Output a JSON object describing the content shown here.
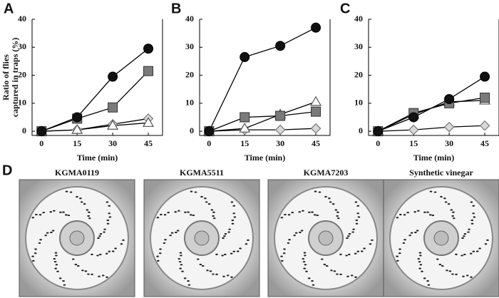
{
  "chart_data": [
    {
      "type": "line",
      "panel": "A",
      "xlabel": "Time (min)",
      "ylabel": [
        "Ratio of flies",
        "captured in traps (%)"
      ],
      "x": [
        0,
        15,
        30,
        45
      ],
      "xlim": [
        -4,
        51
      ],
      "xticks": [
        0,
        15,
        30,
        45
      ],
      "ylim": [
        -1.5,
        40
      ],
      "yticks": [
        0,
        10,
        20,
        30,
        40
      ],
      "series": [
        {
          "marker": "circle",
          "color": "#111111",
          "values": [
            0,
            5,
            19.5,
            29.5
          ]
        },
        {
          "marker": "square",
          "color": "#7a7a7a",
          "values": [
            0,
            4.5,
            8.5,
            21.5
          ]
        },
        {
          "marker": "triangle",
          "color": "#ffffff",
          "values": [
            0,
            0.5,
            2,
            3
          ]
        },
        {
          "marker": "diamond",
          "color": "#d8d8d8",
          "values": [
            0,
            0.5,
            2.5,
            4.5
          ]
        }
      ]
    },
    {
      "type": "line",
      "panel": "B",
      "xlabel": "Time (min)",
      "x": [
        0,
        15,
        30,
        45
      ],
      "xlim": [
        -4,
        51
      ],
      "xticks": [
        0,
        15,
        30,
        45
      ],
      "ylim": [
        -1.5,
        40
      ],
      "yticks": [
        0,
        10,
        20,
        30,
        40
      ],
      "series": [
        {
          "marker": "circle",
          "color": "#111111",
          "values": [
            0,
            26.5,
            30.5,
            37
          ]
        },
        {
          "marker": "square",
          "color": "#7a7a7a",
          "values": [
            0,
            5,
            5.5,
            7
          ]
        },
        {
          "marker": "triangle",
          "color": "#ffffff",
          "values": [
            0,
            1,
            6,
            10.5
          ]
        },
        {
          "marker": "diamond",
          "color": "#d8d8d8",
          "values": [
            0,
            0.5,
            0.5,
            1
          ]
        }
      ]
    },
    {
      "type": "line",
      "panel": "C",
      "xlabel": "Time (min)",
      "x": [
        0,
        15,
        30,
        45
      ],
      "xlim": [
        -4,
        51
      ],
      "xticks": [
        0,
        15,
        30,
        45
      ],
      "ylim": [
        -1.5,
        40
      ],
      "yticks": [
        0,
        10,
        20,
        30,
        40
      ],
      "series": [
        {
          "marker": "circle",
          "color": "#111111",
          "values": [
            0,
            5,
            11.5,
            19.5
          ]
        },
        {
          "marker": "square",
          "color": "#7a7a7a",
          "values": [
            0,
            6.5,
            10,
            12
          ]
        },
        {
          "marker": "triangle",
          "color": "#ffffff",
          "values": [
            0,
            6,
            10.5,
            11
          ]
        },
        {
          "marker": "diamond",
          "color": "#d8d8d8",
          "values": [
            0,
            0.5,
            1.5,
            2
          ]
        }
      ]
    }
  ],
  "panel_d": {
    "label": "D",
    "photos": [
      "KGMA0119",
      "KGMA5511",
      "KGMA7203",
      "Synthetic vinegar"
    ]
  }
}
